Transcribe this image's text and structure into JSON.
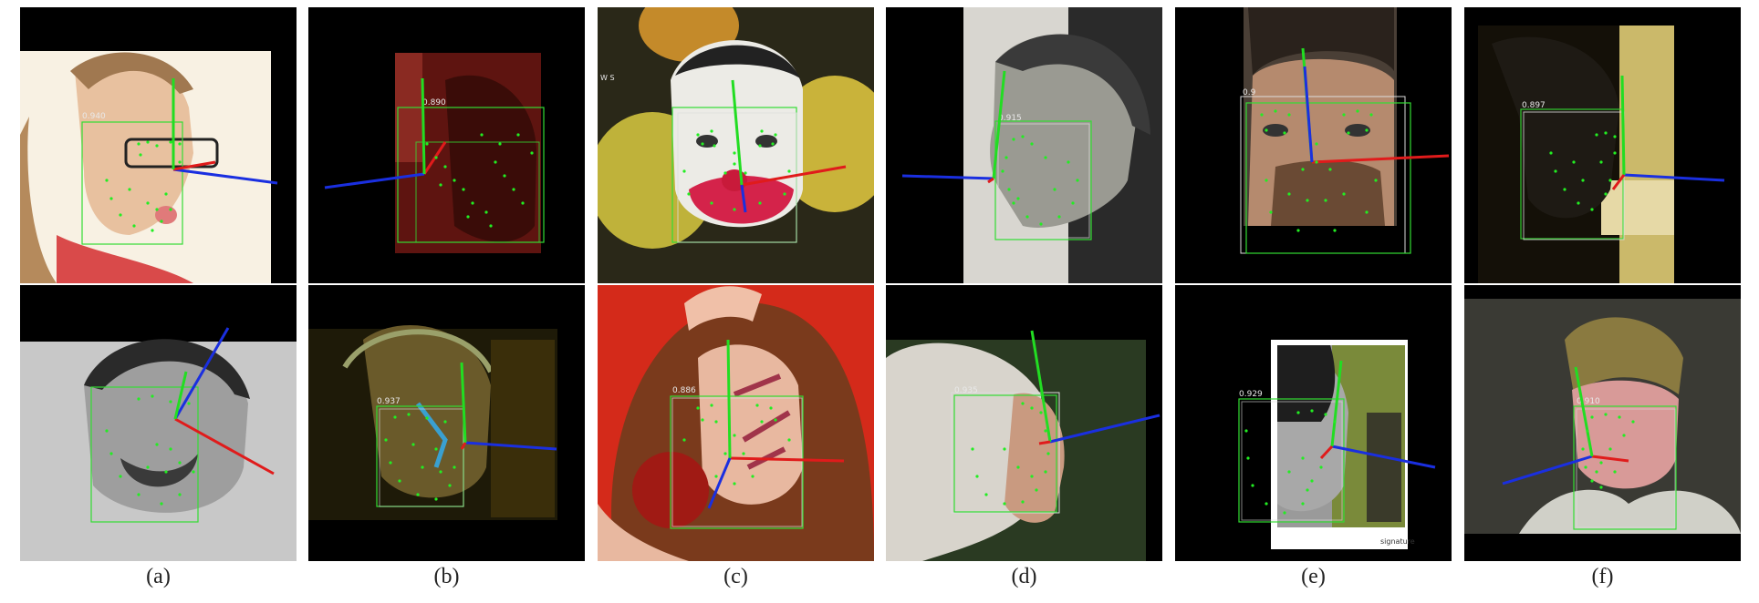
{
  "figure": {
    "columns": [
      {
        "caption": "(a)",
        "scores": [
          "0.940",
          ""
        ]
      },
      {
        "caption": "(b)",
        "scores": [
          "0.890",
          "0.937"
        ]
      },
      {
        "caption": "(c)",
        "scores": [
          "",
          "0.886"
        ]
      },
      {
        "caption": "(d)",
        "scores": [
          "0.915",
          "0.935"
        ]
      },
      {
        "caption": "(e)",
        "scores": [
          "0.9",
          "0.929"
        ]
      },
      {
        "caption": "(f)",
        "scores": [
          "0.897",
          "0.910"
        ]
      }
    ],
    "misc_text": {
      "c_top_label": "W S",
      "e_signature": "signature"
    },
    "colors": {
      "landmark": "#22ee22",
      "box": "#33dd33",
      "box_secondary": "#dddddd",
      "axis_x": "#e01b1b",
      "axis_y": "#22dd22",
      "axis_z": "#1a2fe0",
      "background": "#000000"
    }
  }
}
